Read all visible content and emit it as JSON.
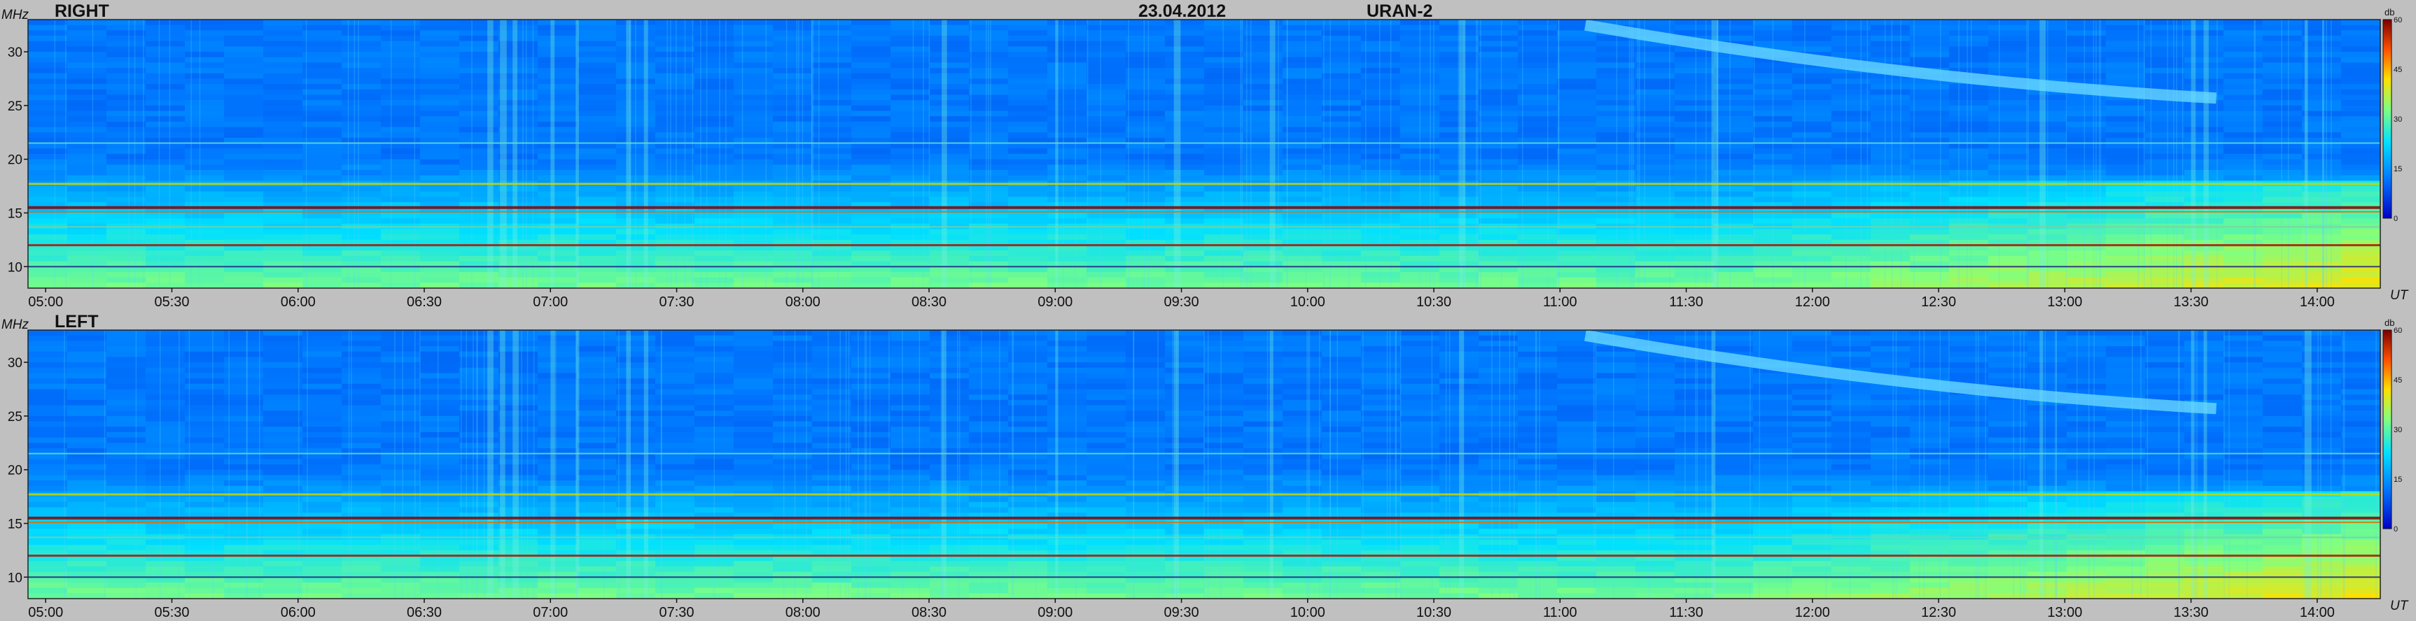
{
  "header": {
    "date": "23.04.2012",
    "instrument": "URAN-2"
  },
  "chart_data": [
    {
      "type": "heatmap",
      "panel_label": "RIGHT",
      "y_unit_label": "MHz",
      "x_unit_label": "UT",
      "x_ticks": [
        "05:00",
        "05:30",
        "06:00",
        "06:30",
        "07:00",
        "07:30",
        "08:00",
        "08:30",
        "09:00",
        "09:30",
        "10:00",
        "10:30",
        "11:00",
        "11:30",
        "12:00",
        "12:30",
        "13:00",
        "13:30",
        "14:00"
      ],
      "x_range_hours": [
        4.93,
        14.25
      ],
      "y_ticks": [
        10,
        15,
        20,
        25,
        30
      ],
      "y_range_mhz": [
        8,
        33
      ],
      "colorbar": {
        "label": "db",
        "ticks": [
          0,
          15,
          30,
          45,
          60
        ],
        "range": [
          0,
          60
        ]
      }
    },
    {
      "type": "heatmap",
      "panel_label": "LEFT",
      "y_unit_label": "MHz",
      "x_unit_label": "UT",
      "x_ticks": [
        "05:00",
        "05:30",
        "06:00",
        "06:30",
        "07:00",
        "07:30",
        "08:00",
        "08:30",
        "09:00",
        "09:30",
        "10:00",
        "10:30",
        "11:00",
        "11:30",
        "12:00",
        "12:30",
        "13:00",
        "13:30",
        "14:00"
      ],
      "x_range_hours": [
        4.93,
        14.25
      ],
      "y_ticks": [
        10,
        15,
        20,
        25,
        30
      ],
      "y_range_mhz": [
        8,
        33
      ],
      "colorbar": {
        "label": "db",
        "ticks": [
          0,
          15,
          30,
          45,
          60
        ],
        "range": [
          0,
          60
        ]
      }
    }
  ]
}
